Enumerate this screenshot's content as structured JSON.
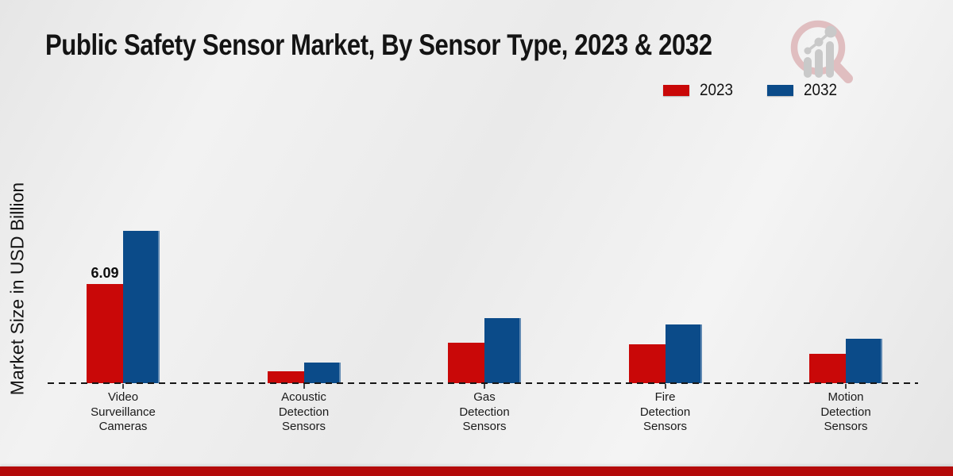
{
  "header": {
    "title": "Public Safety Sensor Market, By Sensor Type, 2023 & 2032"
  },
  "chart_data": {
    "type": "bar",
    "title": "Public Safety Sensor Market, By Sensor Type, 2023 & 2032",
    "xlabel": "",
    "ylabel": "Market Size in USD Billion",
    "categories": [
      "Video Surveillance Cameras",
      "Acoustic Detection Sensors",
      "Gas Detection Sensors",
      "Fire Detection Sensors",
      "Motion Detection Sensors"
    ],
    "series": [
      {
        "name": "2023",
        "color": "#c90808",
        "values": [
          6.09,
          0.75,
          2.48,
          2.39,
          1.8
        ]
      },
      {
        "name": "2032",
        "color": "#0b4b89",
        "values": [
          9.35,
          1.25,
          4.0,
          3.6,
          2.73
        ]
      }
    ],
    "annotations": [
      {
        "text": "6.09",
        "series_index": 0,
        "category_index": 0
      }
    ],
    "ylim": [
      0,
      10
    ],
    "grid": false,
    "legend_position": "top-right",
    "baseline_style": "dashed"
  },
  "colors": {
    "bottom_band": "#b40a0a",
    "text": "#141414"
  },
  "logo": {
    "name": "market-research-magnifier-logo"
  }
}
